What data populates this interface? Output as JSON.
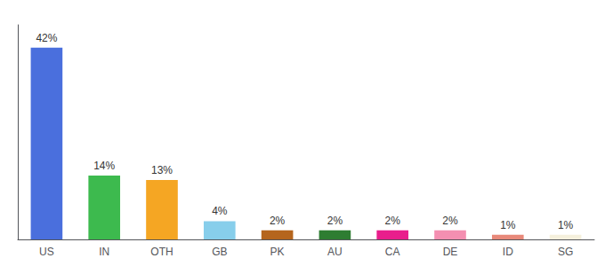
{
  "chart_data": {
    "type": "bar",
    "categories": [
      "US",
      "IN",
      "OTH",
      "GB",
      "PK",
      "AU",
      "CA",
      "DE",
      "ID",
      "SG"
    ],
    "values": [
      42,
      14,
      13,
      4,
      2,
      2,
      2,
      2,
      1,
      1
    ],
    "value_labels": [
      "42%",
      "14%",
      "13%",
      "4%",
      "2%",
      "2%",
      "2%",
      "2%",
      "1%",
      "1%"
    ],
    "colors": [
      "#4a6fdd",
      "#3dba4e",
      "#f5a623",
      "#87ceeb",
      "#b5651d",
      "#2e7d32",
      "#e91e8c",
      "#f48fb1",
      "#e8897a",
      "#f5f0dc"
    ],
    "ylim": [
      0,
      47
    ],
    "data_labels": true,
    "tick_labels": "x",
    "grid": false
  }
}
